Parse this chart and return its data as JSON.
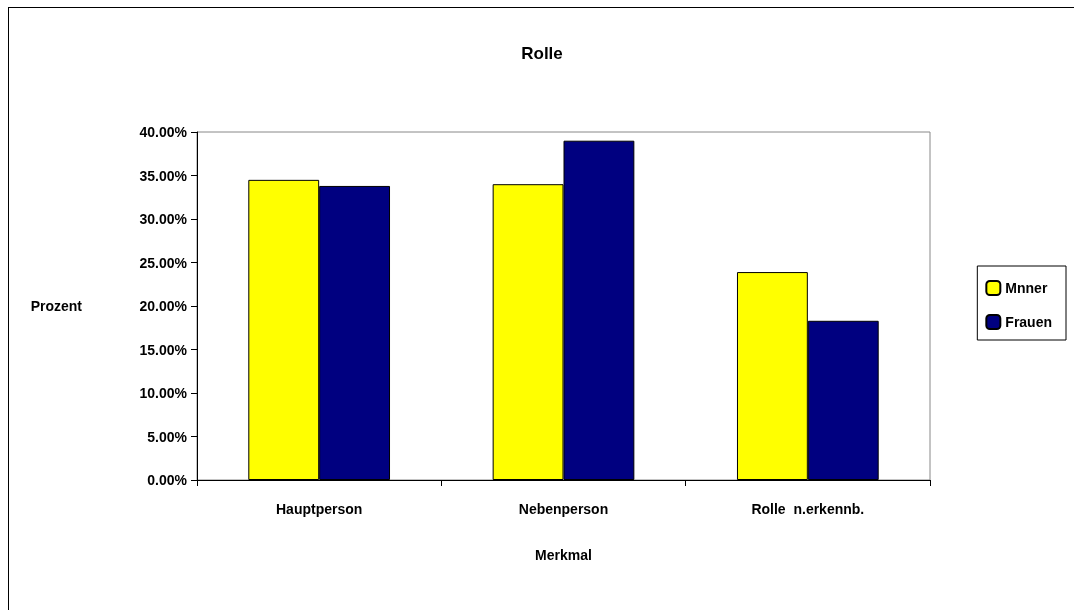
{
  "chart_data": {
    "type": "bar",
    "title": "Rolle",
    "xlabel": "Merkmal",
    "ylabel": "Prozent",
    "categories": [
      "Hauptperson",
      "Nebenperson",
      "Rolle  n.erkennb."
    ],
    "series": [
      {
        "name": "Mnner",
        "color": "#ffff00",
        "values": [
          34.5,
          34.0,
          23.9
        ]
      },
      {
        "name": "Frauen",
        "color": "#000080",
        "values": [
          33.8,
          39.0,
          18.3
        ]
      }
    ],
    "ylim": [
      0,
      40
    ],
    "yticks": [
      {
        "value": 0,
        "label": "0.00%"
      },
      {
        "value": 5,
        "label": "5.00%"
      },
      {
        "value": 10,
        "label": "10.00%"
      },
      {
        "value": 15,
        "label": "15.00%"
      },
      {
        "value": 20,
        "label": "20.00%"
      },
      {
        "value": 25,
        "label": "25.00%"
      },
      {
        "value": 30,
        "label": "30.00%"
      },
      {
        "value": 35,
        "label": "35.00%"
      },
      {
        "value": 40,
        "label": "40.00%"
      }
    ],
    "grid": false,
    "legend": "right"
  }
}
